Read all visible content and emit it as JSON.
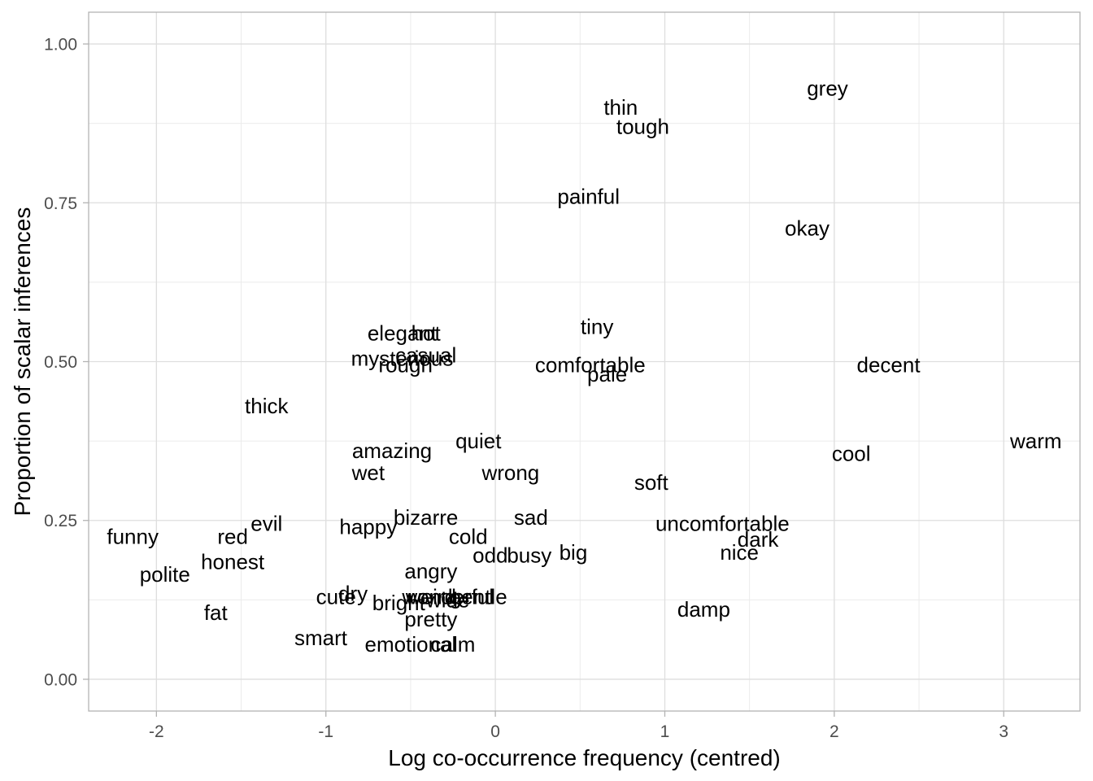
{
  "chart_data": {
    "type": "scatter",
    "xlabel": "Log co-occurrence frequency (centred)",
    "ylabel": "Proportion of scalar inferences",
    "xlim": [
      -2.4,
      3.45
    ],
    "ylim": [
      -0.05,
      1.05
    ],
    "x_ticks": [
      -2,
      -1,
      0,
      1,
      2,
      3
    ],
    "x_tick_labels": [
      "-2",
      "-1",
      "0",
      "1",
      "2",
      "3"
    ],
    "y_ticks": [
      0,
      0.25,
      0.5,
      0.75,
      1.0
    ],
    "y_tick_labels": [
      "0.00",
      "0.25",
      "0.50",
      "0.75",
      "1.00"
    ],
    "grid": true,
    "points": [
      {
        "label": "grey",
        "x": 1.96,
        "y": 0.93
      },
      {
        "label": "thin",
        "x": 0.74,
        "y": 0.9
      },
      {
        "label": "tough",
        "x": 0.87,
        "y": 0.87
      },
      {
        "label": "painful",
        "x": 0.55,
        "y": 0.76
      },
      {
        "label": "okay",
        "x": 1.84,
        "y": 0.71
      },
      {
        "label": "tiny",
        "x": 0.6,
        "y": 0.555
      },
      {
        "label": "elegant",
        "x": -0.55,
        "y": 0.545
      },
      {
        "label": "hot",
        "x": -0.41,
        "y": 0.545
      },
      {
        "label": "casual",
        "x": -0.41,
        "y": 0.51
      },
      {
        "label": "mysterious",
        "x": -0.55,
        "y": 0.505
      },
      {
        "label": "rough",
        "x": -0.53,
        "y": 0.495
      },
      {
        "label": "comfortable",
        "x": 0.56,
        "y": 0.495
      },
      {
        "label": "pale",
        "x": 0.66,
        "y": 0.48
      },
      {
        "label": "decent",
        "x": 2.32,
        "y": 0.495
      },
      {
        "label": "thick",
        "x": -1.35,
        "y": 0.43
      },
      {
        "label": "quiet",
        "x": -0.1,
        "y": 0.375
      },
      {
        "label": "warm",
        "x": 3.19,
        "y": 0.375
      },
      {
        "label": "amazing",
        "x": -0.61,
        "y": 0.36
      },
      {
        "label": "cool",
        "x": 2.1,
        "y": 0.355
      },
      {
        "label": "wet",
        "x": -0.75,
        "y": 0.325
      },
      {
        "label": "wrong",
        "x": 0.09,
        "y": 0.325
      },
      {
        "label": "soft",
        "x": 0.92,
        "y": 0.31
      },
      {
        "label": "bizarre",
        "x": -0.41,
        "y": 0.255
      },
      {
        "label": "sad",
        "x": 0.21,
        "y": 0.255
      },
      {
        "label": "evil",
        "x": -1.35,
        "y": 0.245
      },
      {
        "label": "happy",
        "x": -0.75,
        "y": 0.24
      },
      {
        "label": "uncomfortable",
        "x": 1.34,
        "y": 0.245
      },
      {
        "label": "funny",
        "x": -2.14,
        "y": 0.225
      },
      {
        "label": "red",
        "x": -1.55,
        "y": 0.225
      },
      {
        "label": "cold",
        "x": -0.16,
        "y": 0.225
      },
      {
        "label": "dark",
        "x": 1.55,
        "y": 0.22
      },
      {
        "label": "big",
        "x": 0.46,
        "y": 0.2
      },
      {
        "label": "nice",
        "x": 1.44,
        "y": 0.2
      },
      {
        "label": "odd",
        "x": -0.03,
        "y": 0.195
      },
      {
        "label": "busy",
        "x": 0.2,
        "y": 0.195
      },
      {
        "label": "honest",
        "x": -1.55,
        "y": 0.185
      },
      {
        "label": "angry",
        "x": -0.38,
        "y": 0.17
      },
      {
        "label": "polite",
        "x": -1.95,
        "y": 0.165
      },
      {
        "label": "cute",
        "x": -0.94,
        "y": 0.13
      },
      {
        "label": "dry",
        "x": -0.84,
        "y": 0.135
      },
      {
        "label": "weird",
        "x": -0.38,
        "y": 0.13
      },
      {
        "label": "wonderful",
        "x": -0.28,
        "y": 0.13
      },
      {
        "label": "gentle",
        "x": -0.1,
        "y": 0.13
      },
      {
        "label": "bright",
        "x": -0.57,
        "y": 0.12
      },
      {
        "label": "wide",
        "x": -0.28,
        "y": 0.125
      },
      {
        "label": "fat",
        "x": -1.65,
        "y": 0.105
      },
      {
        "label": "damp",
        "x": 1.23,
        "y": 0.11
      },
      {
        "label": "pretty",
        "x": -0.38,
        "y": 0.095
      },
      {
        "label": "smart",
        "x": -1.03,
        "y": 0.065
      },
      {
        "label": "emotional",
        "x": -0.5,
        "y": 0.055
      },
      {
        "label": "calm",
        "x": -0.25,
        "y": 0.055
      }
    ]
  }
}
